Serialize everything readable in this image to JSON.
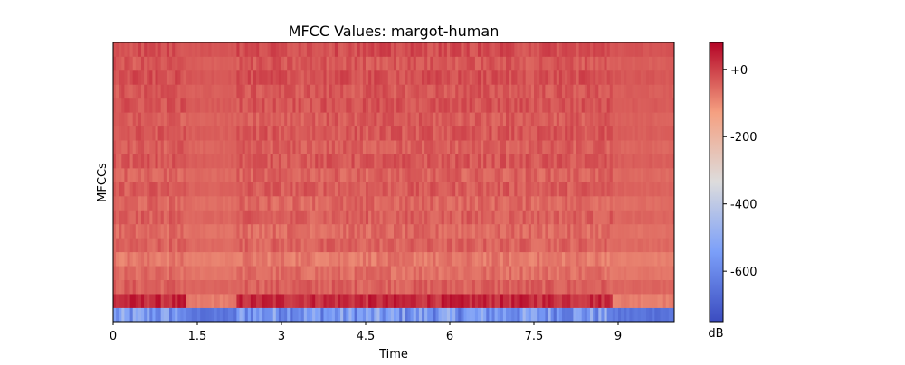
{
  "chart_data": {
    "type": "heatmap",
    "title": "MFCC Values: margot-human",
    "xlabel": "Time",
    "ylabel": "MFCCs",
    "xlim": [
      0,
      10
    ],
    "x_ticks": [
      0,
      1.5,
      3,
      4.5,
      6,
      7.5,
      9
    ],
    "x_tick_labels": [
      "0",
      "1.5",
      "3",
      "4.5",
      "6",
      "7.5",
      "9"
    ],
    "n_coefficients": 20,
    "colorbar": {
      "label": "dB",
      "range": [
        -750,
        80
      ],
      "ticks": [
        0,
        -200,
        -400,
        -600
      ],
      "tick_labels": [
        "+0",
        "-200",
        "-400",
        "-600"
      ],
      "colormap": "coolwarm"
    },
    "time_segments": [
      {
        "start": 0.0,
        "end": 1.3,
        "activity": "high"
      },
      {
        "start": 1.3,
        "end": 2.2,
        "activity": "low"
      },
      {
        "start": 2.2,
        "end": 8.9,
        "activity": "high"
      },
      {
        "start": 8.9,
        "end": 10.0,
        "activity": "low"
      }
    ],
    "coefficient_levels_db": [
      {
        "index": 0,
        "typical": -560
      },
      {
        "index": 1,
        "typical": 30
      },
      {
        "index": 2,
        "typical": -40
      },
      {
        "index": 3,
        "typical": -60
      },
      {
        "index": 4,
        "typical": -75
      },
      {
        "index": 5,
        "typical": -45
      },
      {
        "index": 6,
        "typical": -55
      },
      {
        "index": 7,
        "typical": -40
      },
      {
        "index": 8,
        "typical": -50
      },
      {
        "index": 9,
        "typical": -35
      },
      {
        "index": 10,
        "typical": -45
      },
      {
        "index": 11,
        "typical": -30
      },
      {
        "index": 12,
        "typical": -40
      },
      {
        "index": 13,
        "typical": -30
      },
      {
        "index": 14,
        "typical": -35
      },
      {
        "index": 15,
        "typical": -25
      },
      {
        "index": 16,
        "typical": -30
      },
      {
        "index": 17,
        "typical": -20
      },
      {
        "index": 18,
        "typical": -30
      },
      {
        "index": 19,
        "typical": -15
      }
    ]
  }
}
